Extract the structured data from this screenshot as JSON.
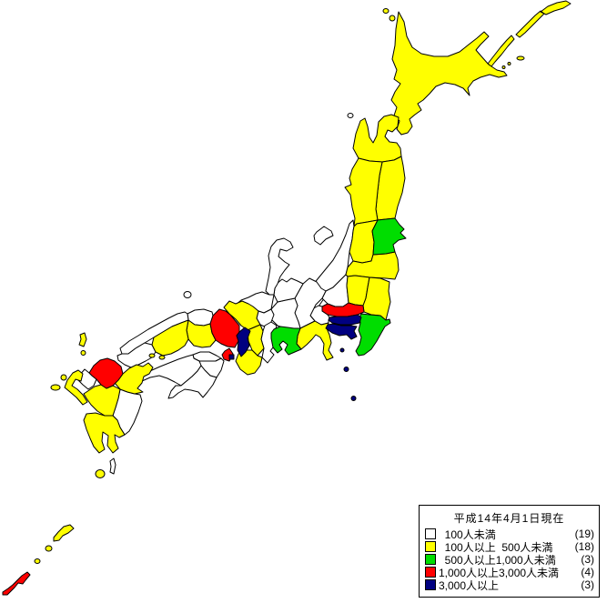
{
  "legend": {
    "title": "平成14年4月1日現在",
    "items": [
      {
        "key": "lt100",
        "label": "  100人未満",
        "count": "(19)"
      },
      {
        "key": "100to500",
        "label": "  100人以上  500人未満",
        "count": "(18)"
      },
      {
        "key": "500to1000",
        "label": "  500人以上1,000人未満",
        "count": "(3)"
      },
      {
        "key": "1000to3000",
        "label": "1,000人以上3,000人未満",
        "count": "(4)"
      },
      {
        "key": "gte3000",
        "label": "3,000人以上",
        "count": "(3)"
      }
    ]
  },
  "palette": {
    "lt100": "#FFFFFF",
    "100to500": "#FFFF00",
    "500to1000": "#00DD00",
    "1000to3000": "#FF0000",
    "gte3000": "#000080"
  },
  "map": {
    "background": "#FFFFFF",
    "stroke": "#000000",
    "regions": [
      {
        "id": "niigata",
        "category": "lt100"
      },
      {
        "id": "gunma",
        "category": "lt100"
      },
      {
        "id": "yamanashi",
        "category": "lt100"
      },
      {
        "id": "nagano",
        "category": "lt100"
      },
      {
        "id": "gifu",
        "category": "lt100"
      },
      {
        "id": "toyama",
        "category": "lt100"
      },
      {
        "id": "ishikawa",
        "category": "lt100"
      },
      {
        "id": "fukui",
        "category": "lt100"
      },
      {
        "id": "shiga",
        "category": "lt100"
      },
      {
        "id": "mie",
        "category": "lt100"
      },
      {
        "id": "tottori",
        "category": "lt100"
      },
      {
        "id": "shimane",
        "category": "lt100"
      },
      {
        "id": "yamaguchi",
        "category": "lt100"
      },
      {
        "id": "kagawa",
        "category": "lt100"
      },
      {
        "id": "tokushima",
        "category": "lt100"
      },
      {
        "id": "ehime",
        "category": "lt100"
      },
      {
        "id": "kochi",
        "category": "lt100"
      },
      {
        "id": "saga",
        "category": "lt100"
      },
      {
        "id": "miyazaki",
        "category": "lt100"
      },
      {
        "id": "okushiri",
        "category": "lt100"
      },
      {
        "id": "tanegashima",
        "category": "lt100"
      },
      {
        "id": "hokkaido",
        "category": "100to500"
      },
      {
        "id": "aomori",
        "category": "100to500"
      },
      {
        "id": "iwate",
        "category": "100to500"
      },
      {
        "id": "akita",
        "category": "100to500"
      },
      {
        "id": "yamagata",
        "category": "100to500"
      },
      {
        "id": "fukushima",
        "category": "100to500"
      },
      {
        "id": "tochigi",
        "category": "100to500"
      },
      {
        "id": "ibaraki",
        "category": "100to500"
      },
      {
        "id": "shizuoka",
        "category": "100to500"
      },
      {
        "id": "kyoto",
        "category": "100to500"
      },
      {
        "id": "nara",
        "category": "100to500"
      },
      {
        "id": "wakayama",
        "category": "100to500"
      },
      {
        "id": "okayama",
        "category": "100to500"
      },
      {
        "id": "hiroshima",
        "category": "100to500"
      },
      {
        "id": "nagasaki",
        "category": "100to500"
      },
      {
        "id": "oita",
        "category": "100to500"
      },
      {
        "id": "kumamoto",
        "category": "100to500"
      },
      {
        "id": "kagoshima",
        "category": "100to500"
      },
      {
        "id": "miyagi",
        "category": "500to1000"
      },
      {
        "id": "chiba",
        "category": "500to1000"
      },
      {
        "id": "aichi",
        "category": "500to1000"
      },
      {
        "id": "saitama",
        "category": "1000to3000"
      },
      {
        "id": "hyogo",
        "category": "1000to3000"
      },
      {
        "id": "fukuoka",
        "category": "1000to3000"
      },
      {
        "id": "okinawa",
        "category": "1000to3000"
      },
      {
        "id": "tokyo",
        "category": "gte3000"
      },
      {
        "id": "kanagawa",
        "category": "gte3000"
      },
      {
        "id": "osaka",
        "category": "gte3000"
      }
    ]
  }
}
